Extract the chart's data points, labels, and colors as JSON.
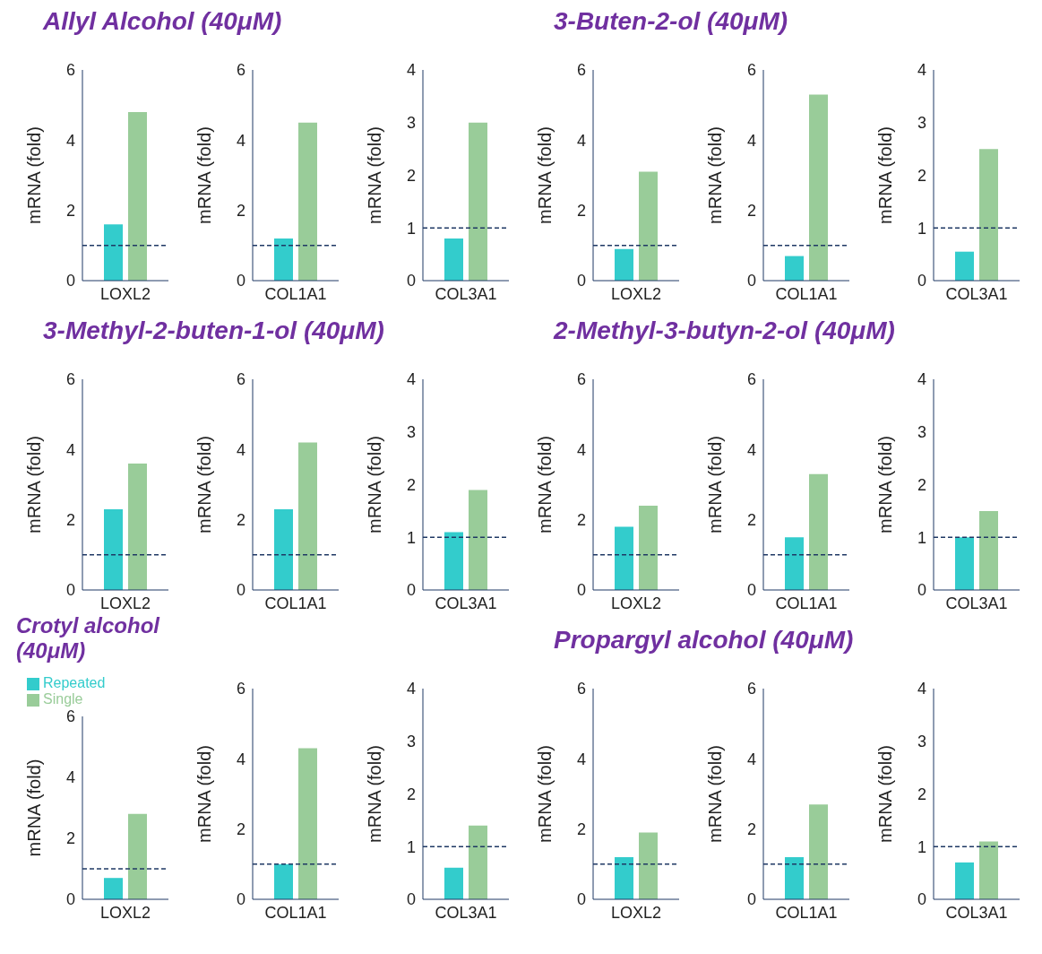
{
  "chart_data": [
    {
      "type": "bar",
      "title": "Allyl Alcohol (40μM)",
      "categories": [
        "LOXL2"
      ],
      "ylabel": "mRNA (fold)",
      "ylim": [
        0,
        6
      ],
      "yticks": [
        0,
        2,
        4,
        6
      ],
      "series": [
        {
          "color": "#33cccc",
          "values": [
            1.6
          ]
        },
        {
          "color": "#99cc99",
          "values": [
            4.8
          ]
        }
      ],
      "ref_lines": [
        {
          "axis": "y",
          "value": 1,
          "line_style": "dashed",
          "color": "#1f3864"
        }
      ]
    },
    {
      "type": "bar",
      "categories": [
        "COL1A1"
      ],
      "ylabel": "mRNA (fold)",
      "ylim": [
        0,
        6
      ],
      "yticks": [
        0,
        2,
        4,
        6
      ],
      "series": [
        {
          "color": "#33cccc",
          "values": [
            1.2
          ]
        },
        {
          "color": "#99cc99",
          "values": [
            4.5
          ]
        }
      ],
      "ref_lines": [
        {
          "axis": "y",
          "value": 1,
          "line_style": "dashed",
          "color": "#1f3864"
        }
      ]
    },
    {
      "type": "bar",
      "categories": [
        "COL3A1"
      ],
      "ylabel": "mRNA (fold)",
      "ylim": [
        0,
        4
      ],
      "yticks": [
        0,
        1,
        2,
        3,
        4
      ],
      "series": [
        {
          "color": "#33cccc",
          "values": [
            0.8
          ]
        },
        {
          "color": "#99cc99",
          "values": [
            3.0
          ]
        }
      ],
      "ref_lines": [
        {
          "axis": "y",
          "value": 1,
          "line_style": "dashed",
          "color": "#1f3864"
        }
      ]
    },
    {
      "type": "bar",
      "title": "3-Buten-2-ol (40μM)",
      "categories": [
        "LOXL2"
      ],
      "ylabel": "mRNA (fold)",
      "ylim": [
        0,
        6
      ],
      "yticks": [
        0,
        2,
        4,
        6
      ],
      "series": [
        {
          "color": "#33cccc",
          "values": [
            0.9
          ]
        },
        {
          "color": "#99cc99",
          "values": [
            3.1
          ]
        }
      ],
      "ref_lines": [
        {
          "axis": "y",
          "value": 1,
          "line_style": "dashed",
          "color": "#1f3864"
        }
      ]
    },
    {
      "type": "bar",
      "categories": [
        "COL1A1"
      ],
      "ylabel": "mRNA (fold)",
      "ylim": [
        0,
        6
      ],
      "yticks": [
        0,
        2,
        4,
        6
      ],
      "series": [
        {
          "color": "#33cccc",
          "values": [
            0.7
          ]
        },
        {
          "color": "#99cc99",
          "values": [
            5.3
          ]
        }
      ],
      "ref_lines": [
        {
          "axis": "y",
          "value": 1,
          "line_style": "dashed",
          "color": "#1f3864"
        }
      ]
    },
    {
      "type": "bar",
      "categories": [
        "COL3A1"
      ],
      "ylabel": "mRNA (fold)",
      "ylim": [
        0,
        4
      ],
      "yticks": [
        0,
        1,
        2,
        3,
        4
      ],
      "series": [
        {
          "color": "#33cccc",
          "values": [
            0.55
          ]
        },
        {
          "color": "#99cc99",
          "values": [
            2.5
          ]
        }
      ],
      "ref_lines": [
        {
          "axis": "y",
          "value": 1,
          "line_style": "dashed",
          "color": "#1f3864"
        }
      ]
    },
    {
      "type": "bar",
      "title": "3-Methyl-2-buten-1-ol (40μM)",
      "categories": [
        "LOXL2"
      ],
      "ylabel": "mRNA (fold)",
      "ylim": [
        0,
        6
      ],
      "yticks": [
        0,
        2,
        4,
        6
      ],
      "series": [
        {
          "color": "#33cccc",
          "values": [
            2.3
          ]
        },
        {
          "color": "#99cc99",
          "values": [
            3.6
          ]
        }
      ],
      "ref_lines": [
        {
          "axis": "y",
          "value": 1,
          "line_style": "dashed",
          "color": "#1f3864"
        }
      ]
    },
    {
      "type": "bar",
      "categories": [
        "COL1A1"
      ],
      "ylabel": "mRNA (fold)",
      "ylim": [
        0,
        6
      ],
      "yticks": [
        0,
        2,
        4,
        6
      ],
      "series": [
        {
          "color": "#33cccc",
          "values": [
            2.3
          ]
        },
        {
          "color": "#99cc99",
          "values": [
            4.2
          ]
        }
      ],
      "ref_lines": [
        {
          "axis": "y",
          "value": 1,
          "line_style": "dashed",
          "color": "#1f3864"
        }
      ]
    },
    {
      "type": "bar",
      "categories": [
        "COL3A1"
      ],
      "ylabel": "mRNA (fold)",
      "ylim": [
        0,
        4
      ],
      "yticks": [
        0,
        1,
        2,
        3,
        4
      ],
      "series": [
        {
          "color": "#33cccc",
          "values": [
            1.1
          ]
        },
        {
          "color": "#99cc99",
          "values": [
            1.9
          ]
        }
      ],
      "ref_lines": [
        {
          "axis": "y",
          "value": 1,
          "line_style": "dashed",
          "color": "#1f3864"
        }
      ]
    },
    {
      "type": "bar",
      "title": "2-Methyl-3-butyn-2-ol (40μM)",
      "categories": [
        "LOXL2"
      ],
      "ylabel": "mRNA (fold)",
      "ylim": [
        0,
        6
      ],
      "yticks": [
        0,
        2,
        4,
        6
      ],
      "series": [
        {
          "color": "#33cccc",
          "values": [
            1.8
          ]
        },
        {
          "color": "#99cc99",
          "values": [
            2.4
          ]
        }
      ],
      "ref_lines": [
        {
          "axis": "y",
          "value": 1,
          "line_style": "dashed",
          "color": "#1f3864"
        }
      ]
    },
    {
      "type": "bar",
      "categories": [
        "COL1A1"
      ],
      "ylabel": "mRNA (fold)",
      "ylim": [
        0,
        6
      ],
      "yticks": [
        0,
        2,
        4,
        6
      ],
      "series": [
        {
          "color": "#33cccc",
          "values": [
            1.5
          ]
        },
        {
          "color": "#99cc99",
          "values": [
            3.3
          ]
        }
      ],
      "ref_lines": [
        {
          "axis": "y",
          "value": 1,
          "line_style": "dashed",
          "color": "#1f3864"
        }
      ]
    },
    {
      "type": "bar",
      "categories": [
        "COL3A1"
      ],
      "ylabel": "mRNA (fold)",
      "ylim": [
        0,
        4
      ],
      "yticks": [
        0,
        1,
        2,
        3,
        4
      ],
      "series": [
        {
          "color": "#33cccc",
          "values": [
            1.0
          ]
        },
        {
          "color": "#99cc99",
          "values": [
            1.5
          ]
        }
      ],
      "ref_lines": [
        {
          "axis": "y",
          "value": 1,
          "line_style": "dashed",
          "color": "#1f3864"
        }
      ]
    },
    {
      "type": "bar",
      "title": "Crotyl alcohol (40μM)",
      "categories": [
        "LOXL2"
      ],
      "ylabel": "mRNA (fold)",
      "ylim": [
        0,
        6
      ],
      "yticks": [
        0,
        2,
        4,
        6
      ],
      "legend": "top left",
      "series": [
        {
          "name": "Repeated",
          "color": "#33cccc",
          "values": [
            0.7
          ]
        },
        {
          "name": "Single",
          "color": "#99cc99",
          "values": [
            2.8
          ]
        }
      ],
      "ref_lines": [
        {
          "axis": "y",
          "value": 1,
          "line_style": "dashed",
          "color": "#1f3864"
        }
      ]
    },
    {
      "type": "bar",
      "categories": [
        "COL1A1"
      ],
      "ylabel": "mRNA (fold)",
      "ylim": [
        0,
        6
      ],
      "yticks": [
        0,
        2,
        4,
        6
      ],
      "series": [
        {
          "color": "#33cccc",
          "values": [
            1.0
          ]
        },
        {
          "color": "#99cc99",
          "values": [
            4.3
          ]
        }
      ],
      "ref_lines": [
        {
          "axis": "y",
          "value": 1,
          "line_style": "dashed",
          "color": "#1f3864"
        }
      ]
    },
    {
      "type": "bar",
      "categories": [
        "COL3A1"
      ],
      "ylabel": "mRNA (fold)",
      "ylim": [
        0,
        4
      ],
      "yticks": [
        0,
        1,
        2,
        3,
        4
      ],
      "series": [
        {
          "color": "#33cccc",
          "values": [
            0.6
          ]
        },
        {
          "color": "#99cc99",
          "values": [
            1.4
          ]
        }
      ],
      "ref_lines": [
        {
          "axis": "y",
          "value": 1,
          "line_style": "dashed",
          "color": "#1f3864"
        }
      ]
    },
    {
      "type": "bar",
      "title": "Propargyl alcohol (40μM)",
      "categories": [
        "LOXL2"
      ],
      "ylabel": "mRNA (fold)",
      "ylim": [
        0,
        6
      ],
      "yticks": [
        0,
        2,
        4,
        6
      ],
      "series": [
        {
          "color": "#33cccc",
          "values": [
            1.2
          ]
        },
        {
          "color": "#99cc99",
          "values": [
            1.9
          ]
        }
      ],
      "ref_lines": [
        {
          "axis": "y",
          "value": 1,
          "line_style": "dashed",
          "color": "#1f3864"
        }
      ]
    },
    {
      "type": "bar",
      "categories": [
        "COL1A1"
      ],
      "ylabel": "mRNA (fold)",
      "ylim": [
        0,
        6
      ],
      "yticks": [
        0,
        2,
        4,
        6
      ],
      "series": [
        {
          "color": "#33cccc",
          "values": [
            1.2
          ]
        },
        {
          "color": "#99cc99",
          "values": [
            2.7
          ]
        }
      ],
      "ref_lines": [
        {
          "axis": "y",
          "value": 1,
          "line_style": "dashed",
          "color": "#1f3864"
        }
      ]
    },
    {
      "type": "bar",
      "categories": [
        "COL3A1"
      ],
      "ylabel": "mRNA (fold)",
      "ylim": [
        0,
        4
      ],
      "yticks": [
        0,
        1,
        2,
        3,
        4
      ],
      "series": [
        {
          "color": "#33cccc",
          "values": [
            0.7
          ]
        },
        {
          "color": "#99cc99",
          "values": [
            1.1
          ]
        }
      ],
      "ref_lines": [
        {
          "axis": "y",
          "value": 1,
          "line_style": "dashed",
          "color": "#1f3864"
        }
      ]
    }
  ]
}
